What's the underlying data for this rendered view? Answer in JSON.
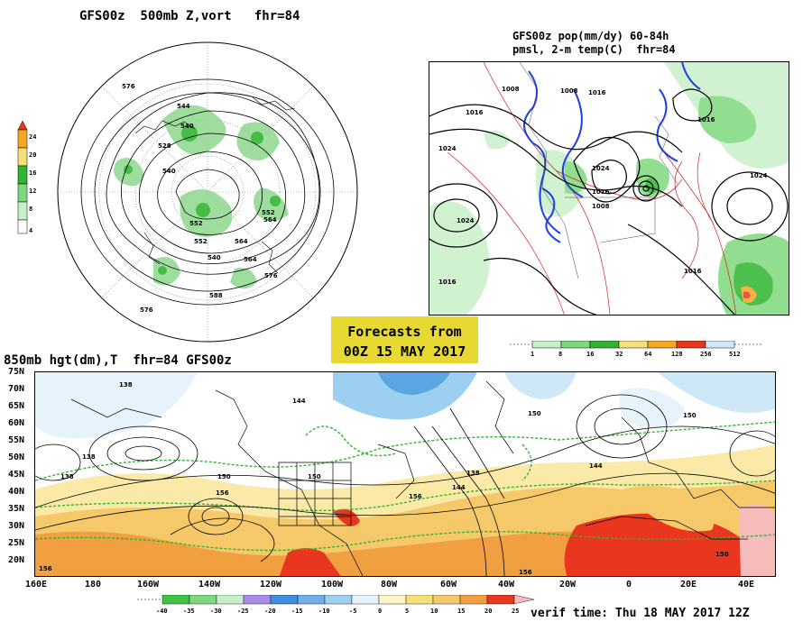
{
  "top_left": {
    "title": "GFS00z  500mb Z,vort   fhr=84",
    "colorbar_ticks": [
      "24",
      "20",
      "16",
      "12",
      "8",
      "4"
    ],
    "contour_labels": [
      "576",
      "544",
      "540",
      "528",
      "540",
      "552",
      "564",
      "552",
      "540",
      "564",
      "588",
      "576",
      "576",
      "564",
      "552"
    ]
  },
  "top_right": {
    "title_line1": "GFS00z pop(mm/dy) 60-84h",
    "title_line2": "pmsl, 2-m temp(C)  fhr=84",
    "contour_labels": [
      "1008",
      "1016",
      "1008",
      "1016",
      "1024",
      "1024",
      "1016",
      "1008",
      "1016",
      "1024",
      "1016",
      "1024",
      "1016"
    ],
    "colorbar_ticks": [
      "1",
      "8",
      "16",
      "32",
      "64",
      "128",
      "256",
      "512"
    ]
  },
  "banner": {
    "line1": "Forecasts from",
    "line2": "00Z 15 MAY 2017"
  },
  "bottom": {
    "title": "850mb hgt(dm),T  fhr=84 GFS00z",
    "lat_labels": [
      "75N",
      "70N",
      "65N",
      "60N",
      "55N",
      "50N",
      "45N",
      "40N",
      "35N",
      "30N",
      "25N",
      "20N"
    ],
    "lon_labels": [
      "160E",
      "180",
      "160W",
      "140W",
      "120W",
      "100W",
      "80W",
      "60W",
      "40W",
      "20W",
      "0",
      "20E",
      "40E"
    ],
    "contour_labels": [
      "138",
      "144",
      "138",
      "138",
      "156",
      "150",
      "150",
      "144",
      "150",
      "144",
      "138",
      "156",
      "156",
      "150",
      "150",
      "156"
    ],
    "colorbar_ticks": [
      "-40",
      "-35",
      "-30",
      "-25",
      "-20",
      "-15",
      "-10",
      "-5",
      "0",
      "5",
      "10",
      "15",
      "20",
      "25"
    ],
    "verif_time": "verif time: Thu 18 MAY 2017 12Z"
  },
  "colors": {
    "green_dark": "#2fb52f",
    "green_mid": "#7ed97e",
    "green_light": "#c8f0c8",
    "yellow": "#f5e07a",
    "orange": "#f5a623",
    "red": "#e8371e",
    "blue_light": "#cfe8f7",
    "blue_mid": "#9dcff0",
    "contour_blue": "#1f3fe6",
    "contour_red": "#d62020"
  }
}
